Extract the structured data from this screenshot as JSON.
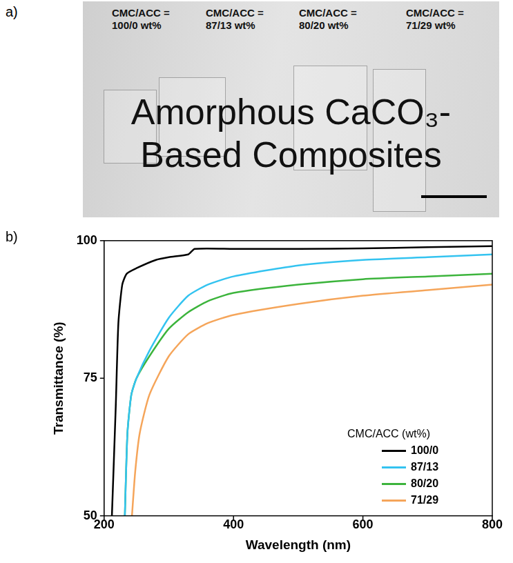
{
  "panel_a": {
    "letter": "a)",
    "labels": [
      "CMC/ACC = 100/0 wt%",
      "CMC/ACC = 87/13 wt%",
      "CMC/ACC = 80/20 wt%",
      "CMC/ACC = 71/29 wt%"
    ],
    "photo_text": [
      "Amorphous CaCO₃-",
      "Based Composites"
    ]
  },
  "chart_data": {
    "type": "line",
    "letter": "b)",
    "x_label": "Wavelength (nm)",
    "y_label": "Transmittance (%)",
    "legend_title": "CMC/ACC (wt%)",
    "legend": "lower right",
    "grid": false,
    "xlim": [
      200,
      800
    ],
    "xticks": [
      200,
      400,
      600,
      800
    ],
    "ylim": [
      50,
      100
    ],
    "yticks": [
      50,
      75,
      100
    ],
    "series": [
      {
        "name": "100/0",
        "color": "#000000",
        "x": [
          212,
          218,
          222,
          228,
          235,
          250,
          280,
          300,
          330,
          340,
          400,
          500,
          600,
          700,
          800
        ],
        "values": [
          50,
          70,
          85,
          92,
          94,
          95,
          96.5,
          97,
          97.5,
          98.5,
          98.5,
          98.5,
          98.6,
          98.8,
          99
        ]
      },
      {
        "name": "87/13",
        "color": "#33c3f0",
        "x": [
          232,
          236,
          242,
          250,
          270,
          300,
          330,
          360,
          400,
          500,
          600,
          700,
          800
        ],
        "values": [
          50,
          65,
          72,
          75,
          80,
          86,
          90,
          92,
          93.5,
          95.5,
          96.5,
          97,
          97.5
        ]
      },
      {
        "name": "80/20",
        "color": "#3cb43c",
        "x": [
          232,
          236,
          242,
          250,
          270,
          300,
          330,
          360,
          400,
          500,
          600,
          700,
          800
        ],
        "values": [
          50,
          65,
          72,
          75,
          79,
          84,
          87,
          89,
          90.5,
          92,
          93,
          93.5,
          94
        ]
      },
      {
        "name": "71/29",
        "color": "#f5a55a",
        "x": [
          243,
          248,
          255,
          270,
          300,
          330,
          360,
          400,
          500,
          600,
          700,
          800
        ],
        "values": [
          50,
          58,
          65,
          72,
          79,
          83,
          85,
          86.5,
          88.5,
          90,
          91,
          92
        ]
      }
    ]
  }
}
